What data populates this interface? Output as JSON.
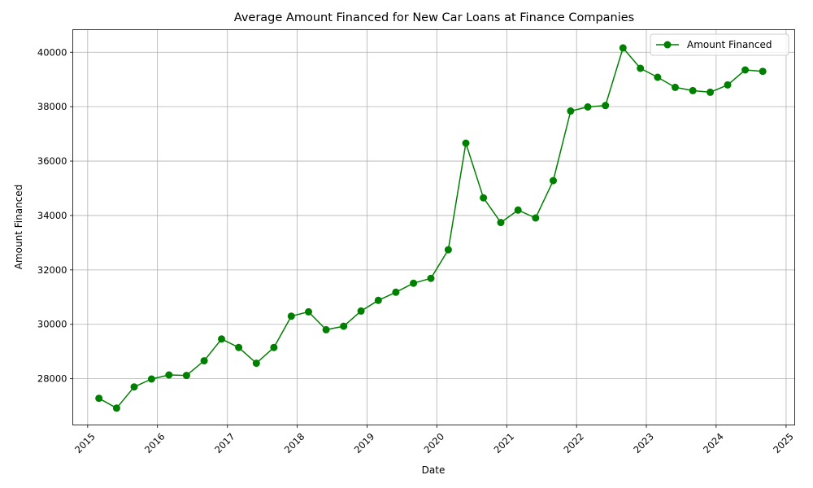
{
  "chart_data": {
    "type": "line",
    "title": "Average Amount Financed for New Car Loans at Finance Companies",
    "xlabel": "Date",
    "ylabel": "Amount Financed",
    "xlim": [
      "2014-10-15",
      "2025-02-15"
    ],
    "ylim": [
      26300,
      40830
    ],
    "x_ticks": [
      "2015",
      "2016",
      "2017",
      "2018",
      "2019",
      "2020",
      "2021",
      "2022",
      "2023",
      "2024",
      "2025"
    ],
    "y_ticks": [
      28000,
      30000,
      32000,
      34000,
      36000,
      38000,
      40000
    ],
    "y_tick_labels": [
      "28000",
      "30000",
      "32000",
      "34000",
      "36000",
      "38000",
      "40000"
    ],
    "grid": true,
    "legend_position": "top-right",
    "colors": {
      "series": "#008000",
      "grid": "#b0b0b0",
      "axes": "#000000"
    },
    "series": [
      {
        "name": "Amount Financed",
        "marker": "circle",
        "x": [
          "2015-03-01",
          "2015-06-01",
          "2015-09-01",
          "2015-12-01",
          "2016-03-01",
          "2016-06-01",
          "2016-09-01",
          "2016-12-01",
          "2017-03-01",
          "2017-06-01",
          "2017-09-01",
          "2017-12-01",
          "2018-03-01",
          "2018-06-01",
          "2018-09-01",
          "2018-12-01",
          "2019-03-01",
          "2019-06-01",
          "2019-09-01",
          "2019-12-01",
          "2020-03-01",
          "2020-06-01",
          "2020-09-01",
          "2020-12-01",
          "2021-03-01",
          "2021-06-01",
          "2021-09-01",
          "2021-12-01",
          "2022-03-01",
          "2022-06-01",
          "2022-09-01",
          "2022-12-01",
          "2023-03-01",
          "2023-06-01",
          "2023-09-01",
          "2023-12-01",
          "2024-03-01",
          "2024-06-01",
          "2024-09-01"
        ],
        "values": [
          27280,
          26920,
          27700,
          27990,
          28140,
          28120,
          28660,
          29460,
          29150,
          28570,
          29150,
          30300,
          30460,
          29800,
          29930,
          30490,
          30880,
          31180,
          31510,
          31690,
          32740,
          36660,
          34650,
          33740,
          34200,
          33910,
          35280,
          37840,
          37990,
          38040,
          40160,
          39410,
          39080,
          38710,
          38590,
          38530,
          38800,
          39350,
          39300
        ]
      }
    ]
  }
}
